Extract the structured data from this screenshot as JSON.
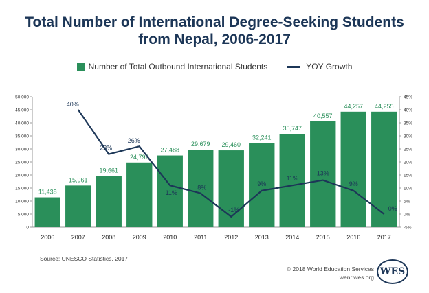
{
  "title_line1": "Total Number of International Degree-Seeking Students",
  "title_line2": "from Nepal, 2006-2017",
  "source": "Source: UNESCO Statistics, 2017",
  "copyright": "© 2018 World Education Services",
  "website": "wenr.wes.org",
  "logo_text": "WES",
  "colors": {
    "bar": "#2a8f5a",
    "line": "#1c3657",
    "bar_label": "#2a8f5a",
    "line_label": "#1c3657"
  },
  "chart_data": {
    "type": "bar",
    "categories": [
      "2006",
      "2007",
      "2008",
      "2009",
      "2010",
      "2011",
      "2012",
      "2013",
      "2014",
      "2015",
      "2016",
      "2017"
    ],
    "series": [
      {
        "name": "Number of Total Outbound International Students",
        "type": "bar",
        "axis": "left",
        "values": [
          11438,
          15961,
          19661,
          24792,
          27488,
          29679,
          29460,
          32241,
          35747,
          40557,
          44257,
          44255
        ],
        "labels": [
          "11,438",
          "15,961",
          "19,661",
          "24,792",
          "27,488",
          "29,679",
          "29,460",
          "32,241",
          "35,747",
          "40,557",
          "44,257",
          "44,255"
        ]
      },
      {
        "name": "YOY Growth",
        "type": "line",
        "axis": "right",
        "values": [
          null,
          40,
          23,
          26,
          11,
          8,
          -1,
          9,
          11,
          13,
          9,
          0
        ],
        "labels": [
          "",
          "40%",
          "23%",
          "26%",
          "11%",
          "8%",
          "-1%",
          "9%",
          "11%",
          "13%",
          "9%",
          "0%"
        ]
      }
    ],
    "ylim_left": [
      0,
      50000
    ],
    "yticks_left": [
      "0",
      "5,000",
      "10,000",
      "15,000",
      "20,000",
      "25,000",
      "30,000",
      "35,000",
      "40,000",
      "45,000",
      "50,000"
    ],
    "ylim_right": [
      -5,
      45
    ],
    "yticks_right": [
      "-5%",
      "0%",
      "5%",
      "10%",
      "15%",
      "20%",
      "25%",
      "30%",
      "35%",
      "40%",
      "45%"
    ],
    "legend_position": "top-center",
    "grid": false
  }
}
